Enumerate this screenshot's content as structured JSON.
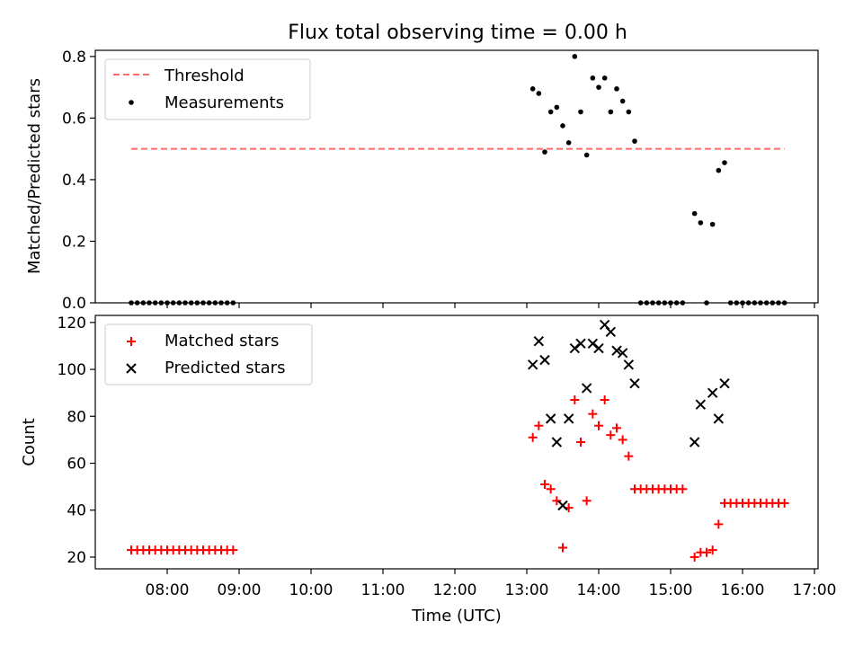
{
  "title": "Flux total observing time = 0.00 h",
  "colors": {
    "threshold": "#ff6b6b",
    "measurements": "#000000",
    "matched": "#ff0000",
    "predicted": "#000000"
  },
  "chart_data": [
    {
      "type": "scatter",
      "ylabel": "Matched/Predicted stars",
      "ylim": [
        0,
        0.82
      ],
      "xlim_hours": [
        7.0,
        17.05
      ],
      "yticks": [
        0.0,
        0.2,
        0.4,
        0.6,
        0.8
      ],
      "ytick_labels": [
        "0.0",
        "0.2",
        "0.4",
        "0.6",
        "0.8"
      ],
      "legend_position": "upper-left",
      "threshold": {
        "name": "Threshold",
        "y": 0.5,
        "x_range": [
          "07:30",
          "16:35"
        ]
      },
      "series": [
        {
          "name": "Measurements",
          "marker": "dot",
          "x": [
            "07:30",
            "07:35",
            "07:40",
            "07:45",
            "07:50",
            "07:55",
            "08:00",
            "08:05",
            "08:10",
            "08:15",
            "08:20",
            "08:25",
            "08:30",
            "08:35",
            "08:40",
            "08:45",
            "08:50",
            "08:55",
            "13:05",
            "13:10",
            "13:15",
            "13:20",
            "13:25",
            "13:30",
            "13:35",
            "13:40",
            "13:45",
            "13:50",
            "13:55",
            "14:00",
            "14:05",
            "14:10",
            "14:15",
            "14:20",
            "14:25",
            "14:30",
            "14:35",
            "14:40",
            "14:45",
            "14:50",
            "14:55",
            "15:00",
            "15:05",
            "15:10",
            "15:20",
            "15:25",
            "15:30",
            "15:35",
            "15:40",
            "15:45",
            "15:50",
            "15:55",
            "16:00",
            "16:05",
            "16:10",
            "16:15",
            "16:20",
            "16:25",
            "16:30",
            "16:35"
          ],
          "y": [
            0,
            0,
            0,
            0,
            0,
            0,
            0,
            0,
            0,
            0,
            0,
            0,
            0,
            0,
            0,
            0,
            0,
            0,
            0.695,
            0.68,
            0.49,
            0.62,
            0.635,
            0.575,
            0.52,
            0.8,
            0.62,
            0.48,
            0.73,
            0.7,
            0.73,
            0.62,
            0.695,
            0.655,
            0.62,
            0.525,
            0,
            0,
            0,
            0,
            0,
            0,
            0,
            0,
            0.29,
            0.26,
            0,
            0.255,
            0.43,
            0.455,
            0,
            0,
            0,
            0,
            0,
            0,
            0,
            0,
            0,
            0
          ]
        }
      ]
    },
    {
      "type": "scatter",
      "xlabel": "Time (UTC)",
      "ylabel": "Count",
      "ylim": [
        15,
        123
      ],
      "xlim_hours": [
        7.0,
        17.05
      ],
      "yticks": [
        20,
        40,
        60,
        80,
        100,
        120
      ],
      "ytick_labels": [
        "20",
        "40",
        "60",
        "80",
        "100",
        "120"
      ],
      "xticks": [
        "08:00",
        "09:00",
        "10:00",
        "11:00",
        "12:00",
        "13:00",
        "14:00",
        "15:00",
        "16:00",
        "17:00"
      ],
      "legend_position": "upper-left",
      "series": [
        {
          "name": "Matched stars",
          "marker": "plus",
          "x": [
            "07:30",
            "07:35",
            "07:40",
            "07:45",
            "07:50",
            "07:55",
            "08:00",
            "08:05",
            "08:10",
            "08:15",
            "08:20",
            "08:25",
            "08:30",
            "08:35",
            "08:40",
            "08:45",
            "08:50",
            "08:55",
            "13:05",
            "13:10",
            "13:15",
            "13:20",
            "13:25",
            "13:30",
            "13:35",
            "13:40",
            "13:45",
            "13:50",
            "13:55",
            "14:00",
            "14:05",
            "14:10",
            "14:15",
            "14:20",
            "14:25",
            "14:30",
            "14:35",
            "14:40",
            "14:45",
            "14:50",
            "14:55",
            "15:00",
            "15:05",
            "15:10",
            "15:20",
            "15:25",
            "15:30",
            "15:35",
            "15:40",
            "15:45",
            "15:50",
            "15:55",
            "16:00",
            "16:05",
            "16:10",
            "16:15",
            "16:20",
            "16:25",
            "16:30",
            "16:35"
          ],
          "y": [
            23,
            23,
            23,
            23,
            23,
            23,
            23,
            23,
            23,
            23,
            23,
            23,
            23,
            23,
            23,
            23,
            23,
            23,
            71,
            76,
            51,
            49,
            44,
            24,
            41,
            87,
            69,
            44,
            81,
            76,
            87,
            72,
            75,
            70,
            63,
            49,
            49,
            49,
            49,
            49,
            49,
            49,
            49,
            49,
            20,
            22,
            22,
            23,
            34,
            43,
            43,
            43,
            43,
            43,
            43,
            43,
            43,
            43,
            43,
            43
          ]
        },
        {
          "name": "Predicted stars",
          "marker": "x",
          "x": [
            "13:05",
            "13:10",
            "13:15",
            "13:20",
            "13:25",
            "13:30",
            "13:35",
            "13:40",
            "13:45",
            "13:50",
            "13:55",
            "14:00",
            "14:05",
            "14:10",
            "14:15",
            "14:20",
            "14:25",
            "14:30",
            "15:20",
            "15:25",
            "15:35",
            "15:40",
            "15:45"
          ],
          "y": [
            102,
            112,
            104,
            79,
            69,
            42,
            79,
            109,
            111,
            92,
            111,
            109,
            119,
            116,
            108,
            107,
            102,
            94,
            69,
            85,
            90,
            79,
            94
          ]
        }
      ]
    }
  ]
}
